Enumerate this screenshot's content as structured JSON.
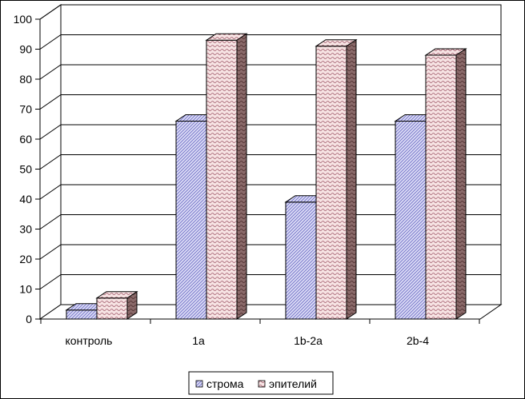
{
  "chart_data": {
    "type": "bar",
    "title": "",
    "xlabel": "",
    "ylabel": "",
    "categories": [
      "контроль",
      "1a",
      "1b-2a",
      "2b-4"
    ],
    "series": [
      {
        "name": "строма",
        "values": [
          3,
          66,
          39,
          66
        ],
        "pattern": "hatch",
        "color": "#c8c8f0"
      },
      {
        "name": "эпителий",
        "values": [
          7,
          93,
          91,
          88
        ],
        "pattern": "wave",
        "color": "#f0d6d6"
      }
    ],
    "ylim": [
      0,
      100
    ],
    "yticks": [
      0,
      10,
      20,
      30,
      40,
      50,
      60,
      70,
      80,
      90,
      100
    ],
    "grid": true,
    "three_d": true,
    "legend_position": "bottom"
  }
}
